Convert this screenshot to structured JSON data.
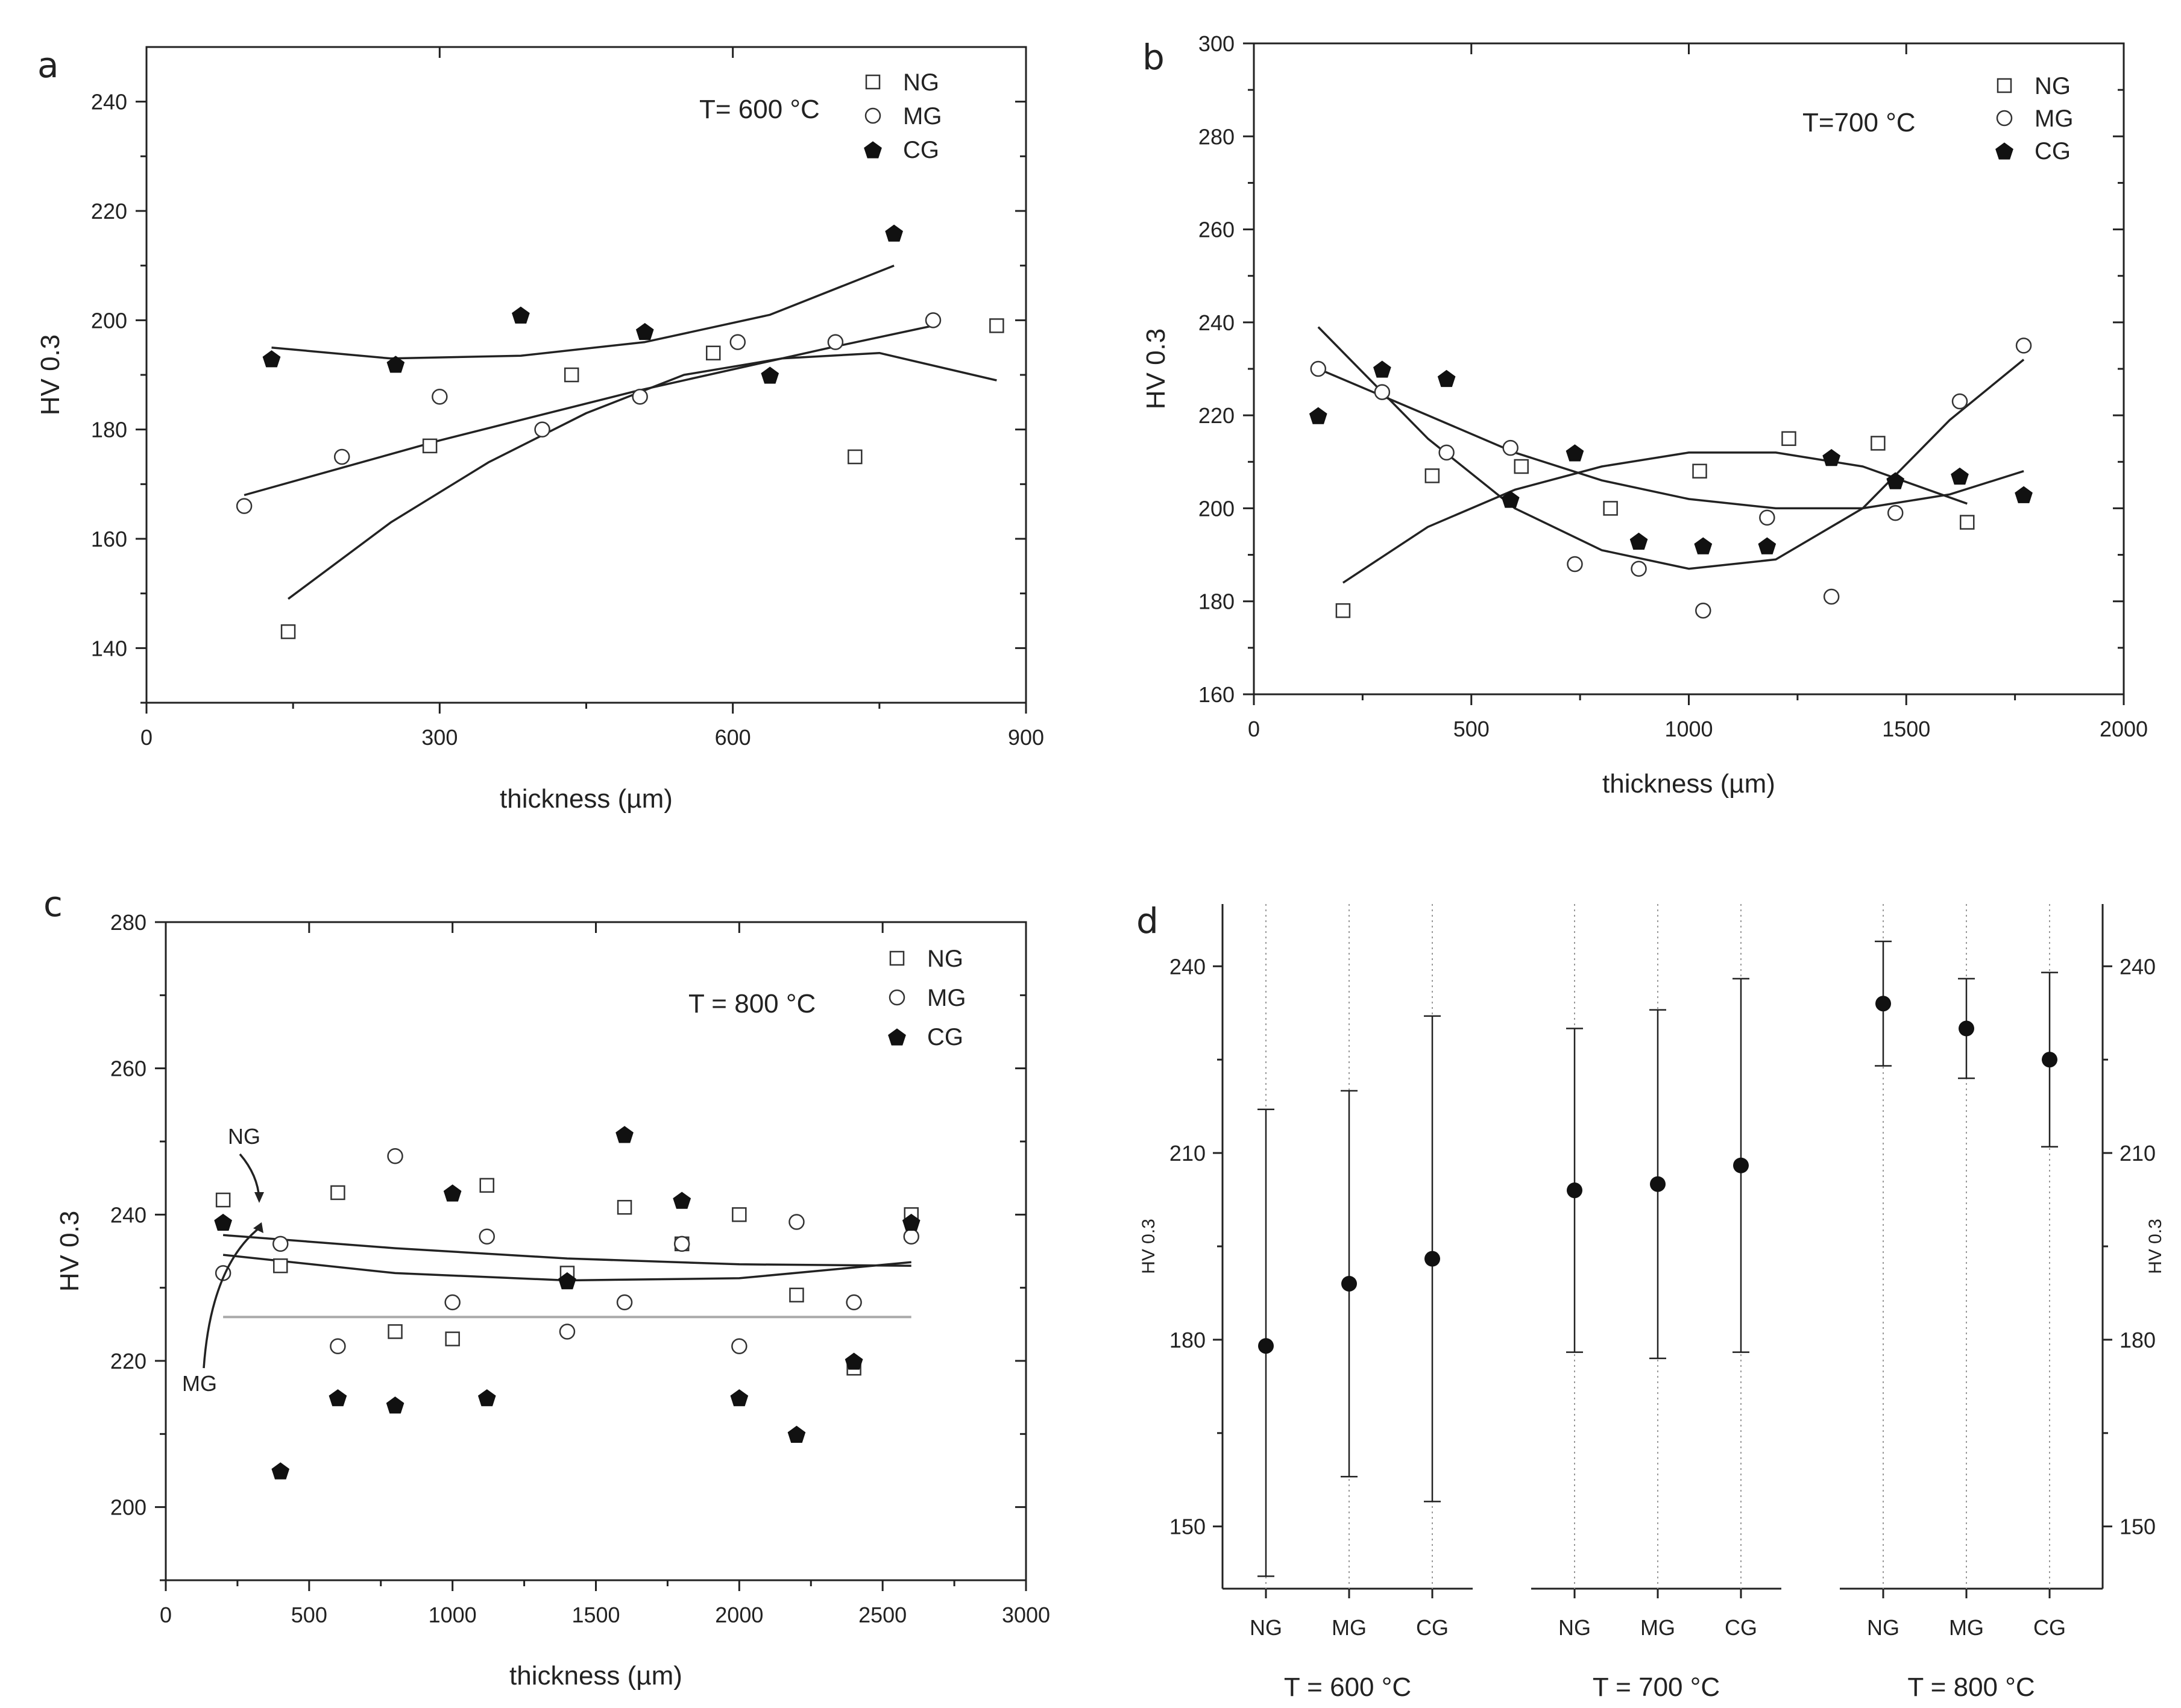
{
  "chart_data": [
    {
      "id": "a",
      "type": "scatter",
      "panel_label": "a",
      "annotation": "T= 600 °C",
      "xlabel": "thickness (µm)",
      "ylabel": "HV 0.3",
      "xlim": [
        0,
        900
      ],
      "ylim": [
        130,
        250
      ],
      "xticks": [
        0,
        300,
        600,
        900
      ],
      "yticks": [
        140,
        160,
        180,
        200,
        220,
        240
      ],
      "legend_position": "top-right",
      "series": [
        {
          "name": "NG",
          "marker": "square",
          "x": [
            145,
            290,
            435,
            580,
            725,
            870
          ],
          "y": [
            143,
            177,
            190,
            194,
            175,
            199
          ]
        },
        {
          "name": "MG",
          "marker": "circle",
          "x": [
            100,
            200,
            300,
            405,
            505,
            605,
            705,
            805
          ],
          "y": [
            166,
            175,
            186,
            180,
            186,
            196,
            196,
            200
          ]
        },
        {
          "name": "CG",
          "marker": "pentagon",
          "x": [
            128,
            255,
            383,
            510,
            638,
            765
          ],
          "y": [
            193,
            192,
            201,
            198,
            190,
            216
          ]
        }
      ],
      "fits": [
        {
          "series": "NG",
          "x": [
            145,
            250,
            350,
            450,
            550,
            650,
            750,
            870
          ],
          "y": [
            149,
            163,
            174,
            183,
            190,
            193,
            194,
            189
          ]
        },
        {
          "series": "MG",
          "x": [
            100,
            300,
            500,
            700,
            805
          ],
          "y": [
            168,
            178,
            187,
            195,
            199
          ]
        },
        {
          "series": "CG",
          "x": [
            128,
            250,
            383,
            510,
            638,
            765
          ],
          "y": [
            195,
            193,
            193.5,
            196,
            201,
            210
          ]
        }
      ]
    },
    {
      "id": "b",
      "type": "scatter",
      "panel_label": "b",
      "annotation": "T=700 °C",
      "xlabel": "thickness (µm)",
      "ylabel": "HV 0.3",
      "xlim": [
        0,
        2000
      ],
      "ylim": [
        160,
        300
      ],
      "xticks": [
        0,
        500,
        1000,
        1500,
        2000
      ],
      "yticks": [
        160,
        180,
        200,
        220,
        240,
        260,
        280,
        300
      ],
      "legend_position": "top-right",
      "series": [
        {
          "name": "NG",
          "marker": "square",
          "x": [
            205,
            410,
            615,
            820,
            1025,
            1230,
            1435,
            1640
          ],
          "y": [
            178,
            207,
            209,
            200,
            208,
            215,
            214,
            197
          ]
        },
        {
          "name": "MG",
          "marker": "circle",
          "x": [
            148,
            295,
            443,
            590,
            738,
            885,
            1033,
            1180,
            1328,
            1475,
            1623,
            1770
          ],
          "y": [
            230,
            225,
            212,
            213,
            188,
            187,
            178,
            198,
            181,
            199,
            223,
            235
          ]
        },
        {
          "name": "CG",
          "marker": "pentagon",
          "x": [
            148,
            295,
            443,
            590,
            738,
            885,
            1033,
            1180,
            1328,
            1475,
            1623,
            1770
          ],
          "y": [
            220,
            230,
            228,
            202,
            212,
            193,
            192,
            192,
            211,
            206,
            207,
            203
          ]
        }
      ],
      "fits": [
        {
          "series": "NG",
          "x": [
            205,
            400,
            600,
            800,
            1000,
            1200,
            1400,
            1640
          ],
          "y": [
            184,
            196,
            204,
            209,
            212,
            212,
            209,
            201
          ]
        },
        {
          "series": "MG",
          "x": [
            148,
            400,
            600,
            800,
            1000,
            1200,
            1400,
            1600,
            1770
          ],
          "y": [
            239,
            215,
            200,
            191,
            187,
            189,
            200,
            219,
            232
          ]
        },
        {
          "series": "CG",
          "x": [
            148,
            400,
            600,
            800,
            1000,
            1200,
            1400,
            1600,
            1770
          ],
          "y": [
            230,
            220,
            212,
            206,
            202,
            200,
            200,
            203,
            208
          ]
        }
      ]
    },
    {
      "id": "c",
      "type": "scatter",
      "panel_label": "c",
      "annotation": "T = 800 °C",
      "xlabel": "thickness (µm)",
      "ylabel": "HV 0.3",
      "xlim": [
        0,
        3000
      ],
      "ylim": [
        190,
        280
      ],
      "xticks": [
        0,
        500,
        1000,
        1500,
        2000,
        2500,
        3000
      ],
      "yticks": [
        200,
        220,
        240,
        260,
        280
      ],
      "legend_position": "top-right",
      "callouts": [
        "NG",
        "MG"
      ],
      "series": [
        {
          "name": "NG",
          "marker": "square",
          "x": [
            200,
            400,
            600,
            800,
            1000,
            1120,
            1400,
            1600,
            1800,
            2000,
            2200,
            2400,
            2600
          ],
          "y": [
            242,
            233,
            243,
            224,
            223,
            244,
            232,
            241,
            236,
            240,
            229,
            219,
            240
          ]
        },
        {
          "name": "MG",
          "marker": "circle",
          "x": [
            200,
            400,
            600,
            800,
            1000,
            1120,
            1400,
            1600,
            1800,
            2000,
            2200,
            2400,
            2600
          ],
          "y": [
            232,
            236,
            222,
            248,
            228,
            237,
            224,
            228,
            236,
            222,
            239,
            228,
            237
          ]
        },
        {
          "name": "CG",
          "marker": "pentagon",
          "x": [
            200,
            400,
            600,
            800,
            1000,
            1120,
            1400,
            1600,
            1800,
            2000,
            2200,
            2400,
            2600
          ],
          "y": [
            239,
            205,
            215,
            214,
            243,
            215,
            231,
            251,
            242,
            215,
            210,
            220,
            239
          ]
        }
      ],
      "fits": [
        {
          "series": "NG",
          "x": [
            200,
            800,
            1400,
            2000,
            2600
          ],
          "y": [
            237.2,
            235.4,
            234,
            233.2,
            233
          ]
        },
        {
          "series": "MG",
          "x": [
            200,
            800,
            1400,
            2000,
            2600
          ],
          "y": [
            234.5,
            232,
            231,
            231.3,
            233.5
          ]
        },
        {
          "series": "CG",
          "x": [
            200,
            2600
          ],
          "y": [
            226,
            226
          ]
        }
      ]
    },
    {
      "id": "d",
      "type": "scatter",
      "panel_label": "d",
      "ylabel": "HV 0.3",
      "ylabel_right": "HV 0.3",
      "ylim": [
        140,
        250
      ],
      "yticks": [
        150,
        180,
        210,
        240
      ],
      "groups": [
        "T = 600 °C",
        "T = 700 °C",
        "T = 800 °C"
      ],
      "categories": [
        "NG",
        "MG",
        "CG"
      ],
      "series": [
        {
          "group": "T = 600 °C",
          "values": [
            179,
            189,
            193
          ],
          "err_low": [
            142,
            158,
            154
          ],
          "err_high": [
            217,
            220,
            232
          ]
        },
        {
          "group": "T = 700 °C",
          "values": [
            204,
            205,
            208
          ],
          "err_low": [
            178,
            177,
            178
          ],
          "err_high": [
            230,
            233,
            238
          ]
        },
        {
          "group": "T = 800 °C",
          "values": [
            234,
            230,
            225
          ],
          "err_low": [
            224,
            222,
            211
          ],
          "err_high": [
            244,
            238,
            239
          ]
        }
      ]
    }
  ]
}
